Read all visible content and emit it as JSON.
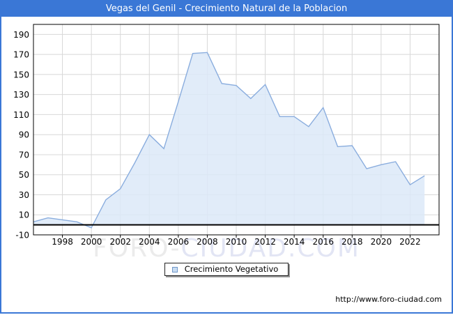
{
  "window": {
    "title": "Vegas del Genil - Crecimiento Natural de la Poblacion",
    "titlebar_color": "#3a77d6",
    "site_url": "http://www.foro-ciudad.com"
  },
  "watermark": {
    "part1": "FORO-",
    "part2": "CIUDAD.COM"
  },
  "legend": {
    "label": "Crecimiento Vegetativo"
  },
  "chart_data": {
    "type": "area",
    "title": "Vegas del Genil - Crecimiento Natural de la Poblacion",
    "xlabel": "",
    "ylabel": "",
    "x": [
      1996,
      1997,
      1998,
      1999,
      2000,
      2001,
      2002,
      2003,
      2004,
      2005,
      2006,
      2007,
      2008,
      2009,
      2010,
      2011,
      2012,
      2013,
      2014,
      2015,
      2016,
      2017,
      2018,
      2019,
      2020,
      2021,
      2022,
      2023
    ],
    "series": [
      {
        "name": "Crecimiento Vegetativo",
        "values": [
          3,
          7,
          5,
          3,
          -3,
          25,
          36,
          62,
          90,
          76,
          123,
          171,
          172,
          141,
          139,
          126,
          140,
          108,
          108,
          98,
          117,
          78,
          79,
          56,
          60,
          63,
          40,
          49
        ]
      }
    ],
    "xlim": [
      1996,
      2024
    ],
    "ylim": [
      -10,
      200
    ],
    "xticks": [
      1998,
      2000,
      2002,
      2004,
      2006,
      2008,
      2010,
      2012,
      2014,
      2016,
      2018,
      2020,
      2022
    ],
    "yticks": [
      -10,
      10,
      30,
      50,
      70,
      90,
      110,
      130,
      150,
      170,
      190
    ],
    "grid": true,
    "legend_position": "bottom-center",
    "baseline": 0,
    "colors": {
      "area_fill": "#dce9f8",
      "line": "#8aadde",
      "gridline": "#d8d8d8",
      "axis": "#000000",
      "tick_label": "#000000"
    }
  }
}
